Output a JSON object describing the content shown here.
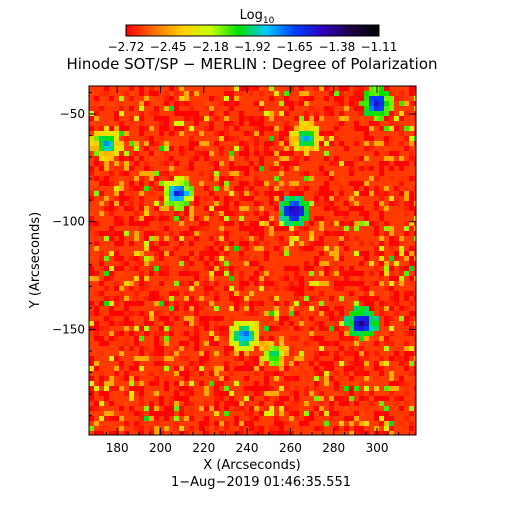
{
  "colorbar": {
    "title_main": "Log",
    "title_sub": "10",
    "tick_labels": [
      "−2.72",
      "−2.45",
      "−2.18",
      "−1.92",
      "−1.65",
      "−1.38",
      "−1.11"
    ],
    "colors": [
      "#ff0000",
      "#ff7000",
      "#ffd000",
      "#c8ff00",
      "#00e000",
      "#00c8ff",
      "#0040ff",
      "#3000c0",
      "#200040",
      "#000000"
    ]
  },
  "chart_data": {
    "type": "heatmap",
    "title": "Hinode SOT/SP − MERLIN : Degree of Polarization",
    "xlabel": "X (Arcseconds)",
    "ylabel": "Y (Arcseconds)",
    "footer": "1−Aug−2019 01:46:35.551",
    "xlim": [
      167,
      318
    ],
    "ylim": [
      -199,
      -37
    ],
    "x_ticks": [
      180,
      200,
      220,
      240,
      260,
      280,
      300
    ],
    "x_tick_labels": [
      "180",
      "200",
      "220",
      "240",
      "260",
      "280",
      "300"
    ],
    "y_ticks": [
      -150,
      -100,
      -50
    ],
    "y_tick_labels": [
      "−150",
      "−100",
      "−50"
    ],
    "value_range": [
      -2.72,
      -1.11
    ],
    "dominant_value": -2.6,
    "features": [
      {
        "x": 262,
        "y": -95,
        "value": -1.3
      },
      {
        "x": 293,
        "y": -147,
        "value": -1.3
      },
      {
        "x": 300,
        "y": -45,
        "value": -1.4
      },
      {
        "x": 208,
        "y": -87,
        "value": -1.5
      },
      {
        "x": 239,
        "y": -153,
        "value": -1.6
      },
      {
        "x": 175,
        "y": -64,
        "value": -1.7
      },
      {
        "x": 267,
        "y": -61,
        "value": -1.7
      },
      {
        "x": 252,
        "y": -162,
        "value": -1.8
      }
    ]
  }
}
